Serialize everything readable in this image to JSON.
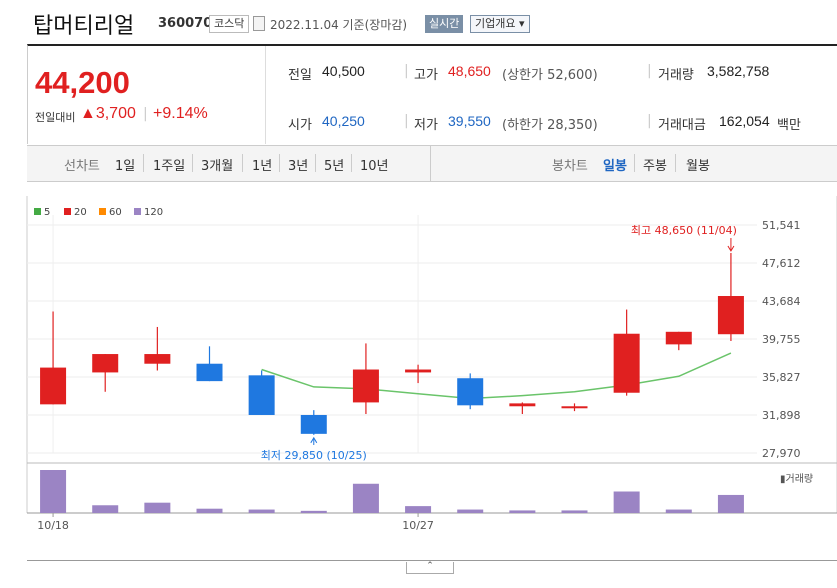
{
  "header": {
    "name": "탑머티리얼",
    "code": "360070",
    "market": "코스닥",
    "date": "2022.11.04 기준(장마감)",
    "live_label": "실시간",
    "overview_label": "기업개요 ▾"
  },
  "summary": {
    "price": "44,200",
    "change_label": "전일대비",
    "change": "▲3,700",
    "change_pct": "+9.14%",
    "prev_close": {
      "label": "전일",
      "value": "40,500"
    },
    "high": {
      "label": "고가",
      "value": "48,650",
      "note": "(상한가 52,600)"
    },
    "volume": {
      "label": "거래량",
      "value": "3,582,758"
    },
    "open": {
      "label": "시가",
      "value": "40,250"
    },
    "low": {
      "label": "저가",
      "value": "39,550",
      "note": "(하한가 28,350)"
    },
    "amount": {
      "label": "거래대금",
      "value": "162,054",
      "unit": "백만"
    }
  },
  "line_chart_tabs": {
    "label": "선차트",
    "items": [
      "1일",
      "1주일",
      "3개월",
      "1년",
      "3년",
      "5년",
      "10년"
    ]
  },
  "candle_tabs": {
    "label": "봉차트",
    "items": [
      "일봉",
      "주봉",
      "월봉"
    ],
    "active": "일봉"
  },
  "colors": {
    "up": "#e02020",
    "down": "#1f78e0",
    "ma20": "#6ac46a",
    "volume": "#9b84c4"
  },
  "chart_data": {
    "type": "candlestick",
    "legend": [
      {
        "name": "5",
        "color": "#44aa44"
      },
      {
        "name": "20",
        "color": "#e02020"
      },
      {
        "name": "60",
        "color": "#ff8a00"
      },
      {
        "name": "120",
        "color": "#9b84c4"
      }
    ],
    "y_ticks": [
      "51,541",
      "47,612",
      "43,684",
      "39,755",
      "35,827",
      "31,898",
      "27,970"
    ],
    "ylim": [
      27970,
      51541
    ],
    "x_labels": [
      {
        "index": 0,
        "label": "10/18"
      },
      {
        "index": 7,
        "label": "10/27"
      }
    ],
    "candles": [
      {
        "o": 33000,
        "h": 42600,
        "l": 33000,
        "c": 36800
      },
      {
        "o": 36300,
        "h": 38200,
        "l": 34300,
        "c": 38200
      },
      {
        "o": 37200,
        "h": 41000,
        "l": 36500,
        "c": 38200
      },
      {
        "o": 37200,
        "h": 39000,
        "l": 35400,
        "c": 35400
      },
      {
        "o": 36000,
        "h": 36500,
        "l": 31900,
        "c": 31900
      },
      {
        "o": 31900,
        "h": 32400,
        "l": 29850,
        "c": 29950
      },
      {
        "o": 33200,
        "h": 39300,
        "l": 32000,
        "c": 36600
      },
      {
        "o": 36300,
        "h": 37100,
        "l": 35200,
        "c": 36600
      },
      {
        "o": 35700,
        "h": 36200,
        "l": 32500,
        "c": 32900
      },
      {
        "o": 32800,
        "h": 33200,
        "l": 32000,
        "c": 33100
      },
      {
        "o": 32600,
        "h": 33100,
        "l": 32300,
        "c": 32800
      },
      {
        "o": 34200,
        "h": 42800,
        "l": 33900,
        "c": 40300
      },
      {
        "o": 39200,
        "h": 40500,
        "l": 38600,
        "c": 40500
      },
      {
        "o": 40250,
        "h": 48650,
        "l": 39550,
        "c": 44200
      }
    ],
    "ma20": [
      null,
      null,
      null,
      null,
      36600,
      34800,
      34600,
      34100,
      33600,
      33900,
      34300,
      35000,
      35900,
      38300
    ],
    "volume_relative": [
      1.0,
      0.18,
      0.24,
      0.1,
      0.08,
      0.05,
      0.68,
      0.16,
      0.08,
      0.06,
      0.06,
      0.5,
      0.08,
      0.42
    ],
    "high_annotation": {
      "index": 13,
      "text": "최고 48,650 (11/04)"
    },
    "low_annotation": {
      "index": 5,
      "text": "최저 29,850 (10/25)"
    },
    "volume_label": "거래량"
  }
}
